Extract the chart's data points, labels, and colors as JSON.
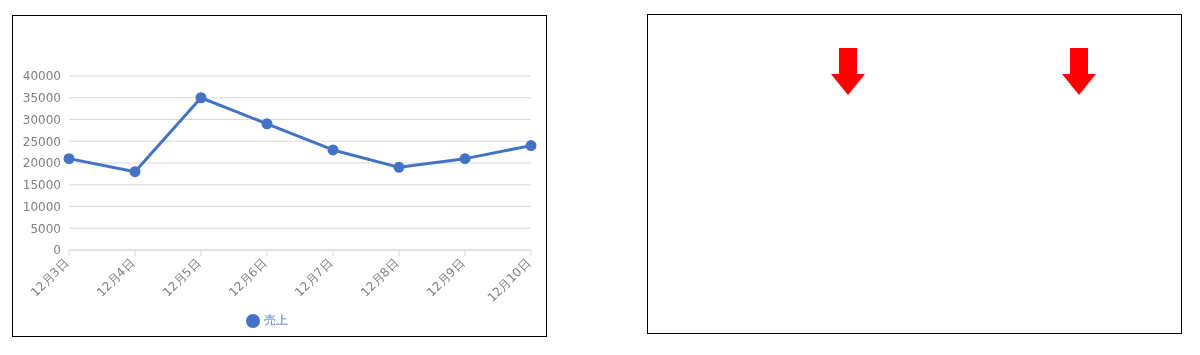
{
  "chart_data": {
    "type": "line",
    "categories": [
      "12月3日",
      "12月4日",
      "12月5日",
      "12月6日",
      "12月7日",
      "12月8日",
      "12月9日",
      "12月10日"
    ],
    "series": [
      {
        "name": "売上",
        "color": "#4472c4",
        "values": [
          21000,
          18000,
          35000,
          29000,
          23000,
          19000,
          21000,
          24000
        ]
      }
    ],
    "ylim": [
      0,
      40000
    ],
    "yticks": [
      0,
      5000,
      10000,
      15000,
      20000,
      25000,
      30000,
      35000,
      40000
    ],
    "grid": "y",
    "legend": "bottom",
    "marker": "circle",
    "line_style": "solid"
  }
}
